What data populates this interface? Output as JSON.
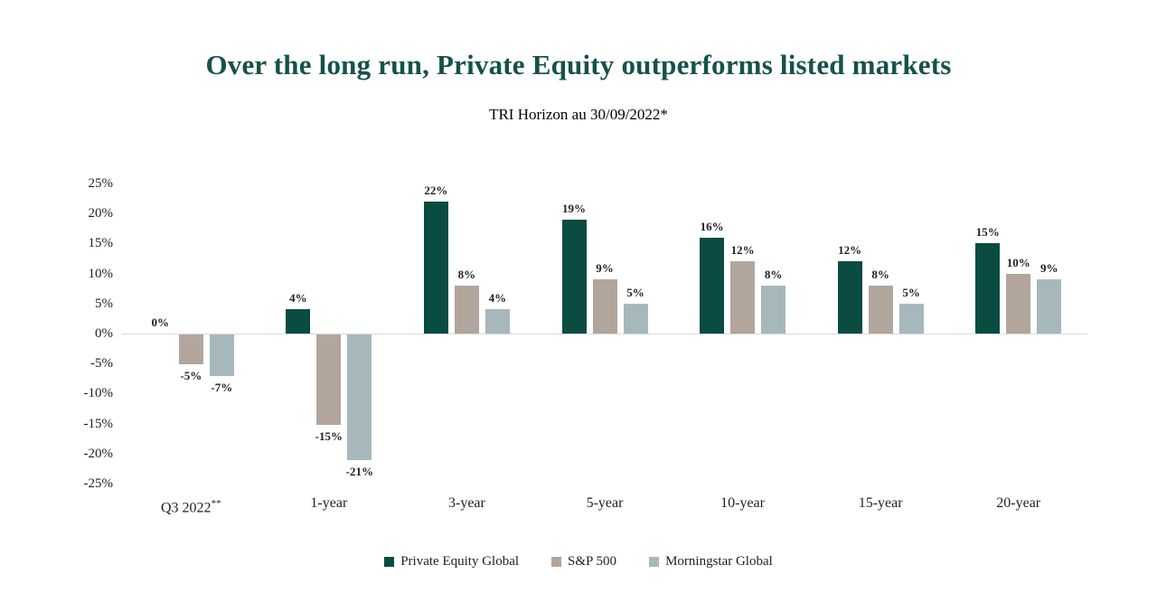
{
  "title": "Over the long run, Private Equity outperforms listed markets",
  "subtitle": "TRI Horizon au 30/09/2022*",
  "title_color": "#15524a",
  "chart_data": {
    "type": "bar",
    "title": "Over the long run, Private Equity outperforms listed markets",
    "subtitle": "TRI Horizon au 30/09/2022*",
    "categories": [
      {
        "label": "Q3 2022",
        "sup": "**"
      },
      {
        "label": "1-year",
        "sup": ""
      },
      {
        "label": "3-year",
        "sup": ""
      },
      {
        "label": "5-year",
        "sup": ""
      },
      {
        "label": "10-year",
        "sup": ""
      },
      {
        "label": "15-year",
        "sup": ""
      },
      {
        "label": "20-year",
        "sup": ""
      }
    ],
    "series": [
      {
        "name": "Private Equity Global",
        "color": "#0a4b42",
        "values": [
          0,
          4,
          22,
          19,
          16,
          12,
          15
        ]
      },
      {
        "name": "S&P 500",
        "color": "#b2a59c",
        "values": [
          -5,
          -15,
          8,
          9,
          12,
          8,
          10
        ]
      },
      {
        "name": "Morningstar Global",
        "color": "#a6b8bc",
        "values": [
          -7,
          -21,
          4,
          5,
          8,
          5,
          9
        ]
      }
    ],
    "value_suffix": "%",
    "yticks": [
      25,
      20,
      15,
      10,
      5,
      0,
      -5,
      -10,
      -15,
      -20,
      -25
    ],
    "ylim": [
      -25,
      25
    ],
    "grid": false,
    "legend_position": "bottom",
    "axis_line_color": "#d9d9d9",
    "text_color": "#1f1f1f"
  }
}
